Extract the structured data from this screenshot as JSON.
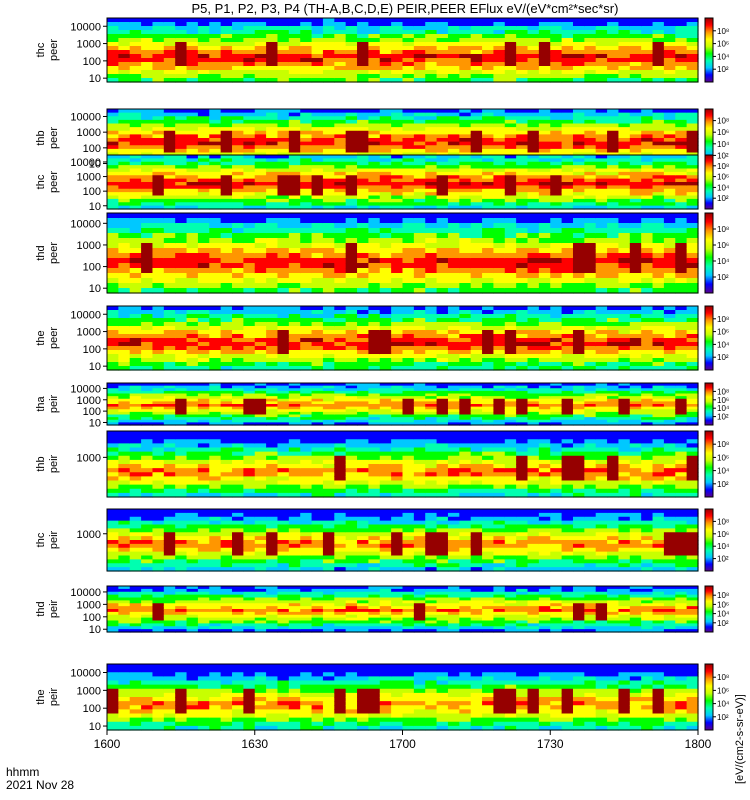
{
  "title": "P5, P1, P2, P3, P4 (TH-A,B,C,D,E) PEIR,PEER EFlux eV/(eV*cm²*sec*sr)",
  "footer": {
    "time_format": "hhmm",
    "date": "2021 Nov 28"
  },
  "colorbar": {
    "vertical_label": "[eV/(cm2-s-sr-eV)]",
    "tick_labels": [
      "10²",
      "10⁴",
      "10⁶",
      "10⁸"
    ]
  },
  "chart_data": {
    "type": "heatmap",
    "x_ticks": [
      "1600",
      "1630",
      "1700",
      "1730",
      "1800"
    ],
    "xlim": [
      "1600",
      "1800"
    ],
    "y_scale": "log",
    "z_scale": "log",
    "z_range": [
      10,
      1000000000
    ],
    "colormap": [
      "#5a008a",
      "#0000ff",
      "#00c8ff",
      "#00ffb0",
      "#00ff00",
      "#c8ff00",
      "#ffff00",
      "#ff9600",
      "#ff0000",
      "#960000"
    ],
    "panels": [
      {
        "label": "thc peer",
        "yticks": [
          "10",
          "100",
          "1000",
          "10000"
        ],
        "ylim": [
          6,
          30000
        ]
      },
      {
        "label": "thb peer",
        "yticks": [
          "10",
          "100",
          "1000",
          "10000"
        ],
        "ylim": [
          6,
          30000
        ]
      },
      {
        "label": "thc peer",
        "yticks": [
          "10",
          "100",
          "1000",
          "10000"
        ],
        "ylim": [
          6,
          30000
        ]
      },
      {
        "label": "thd peer",
        "yticks": [
          "10",
          "100",
          "1000",
          "10000"
        ],
        "ylim": [
          6,
          30000
        ]
      },
      {
        "label": "the peer",
        "yticks": [
          "10",
          "100",
          "1000",
          "10000"
        ],
        "ylim": [
          6,
          30000
        ]
      },
      {
        "label": "tha peir",
        "yticks": [
          "10",
          "100",
          "1000",
          "10000"
        ],
        "ylim": [
          6,
          30000
        ]
      },
      {
        "label": "thb peir",
        "yticks": [
          "1000"
        ],
        "ylim": [
          6,
          30000
        ]
      },
      {
        "label": "thc peir",
        "yticks": [
          "1000"
        ],
        "ylim": [
          6,
          30000
        ]
      },
      {
        "label": "thd peir",
        "yticks": [
          "10",
          "100",
          "1000",
          "10000"
        ],
        "ylim": [
          6,
          30000
        ]
      },
      {
        "label": "the peir",
        "yticks": [
          "10",
          "100",
          "1000",
          "10000"
        ],
        "ylim": [
          6,
          30000
        ]
      }
    ]
  }
}
